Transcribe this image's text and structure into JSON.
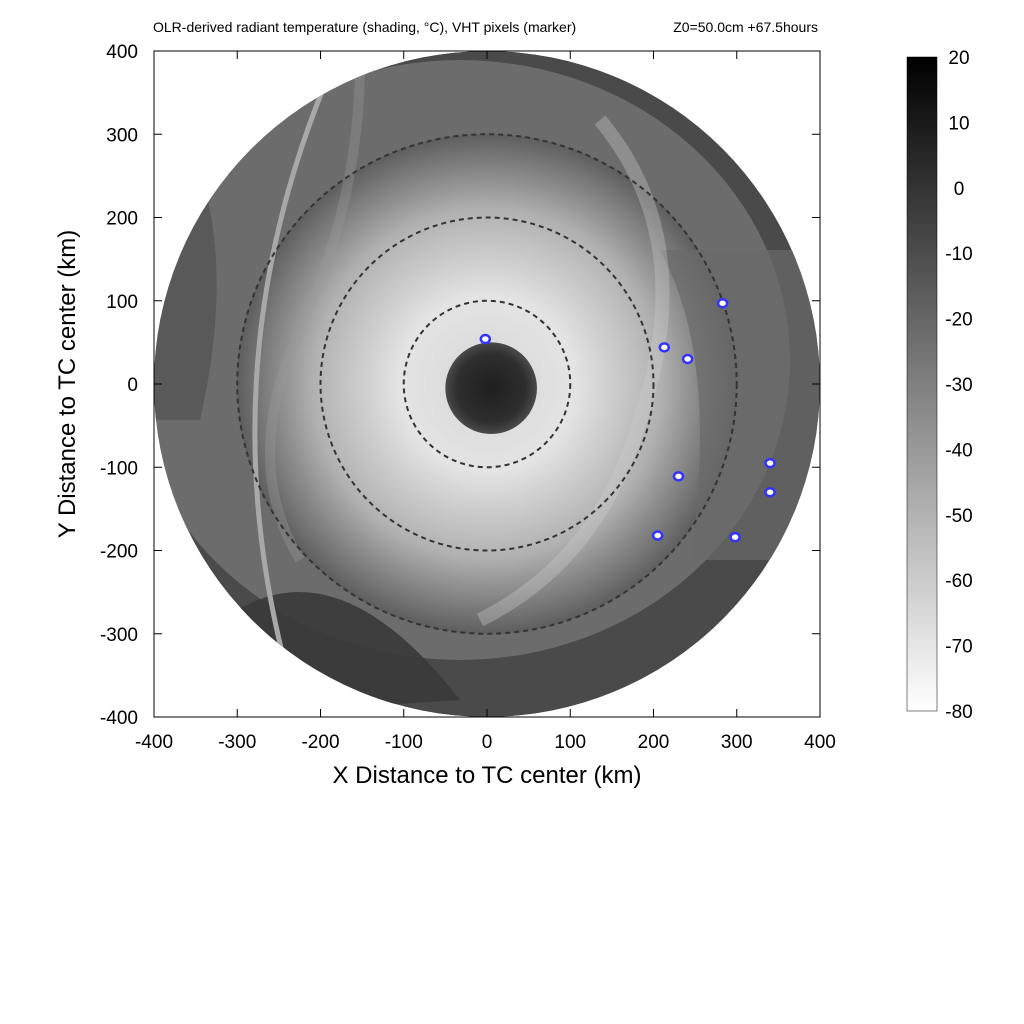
{
  "chart_data": {
    "type": "heatmap",
    "title": "OLR-derived radiant temperature (shading, °C), VHT pixels (marker)",
    "subtitle": "Z0=50.0cm  +67.5hours",
    "xlabel": "X Distance to TC center (km)",
    "ylabel": "Y Distance to TC center (km)",
    "xlim": [
      -400,
      400
    ],
    "ylim": [
      -400,
      400
    ],
    "x_ticks": [
      "-400",
      "-300",
      "-200",
      "-100",
      "0",
      "100",
      "200",
      "300",
      "400"
    ],
    "y_ticks": [
      "-400",
      "-300",
      "-200",
      "-100",
      "0",
      "100",
      "200",
      "300",
      "400"
    ],
    "colorbar": {
      "range": [
        -80,
        20
      ],
      "ticks": [
        "20",
        "10",
        "0",
        "-10",
        "-20",
        "-30",
        "-40",
        "-50",
        "-60",
        "-70",
        "-80"
      ],
      "low_color": "#ffffff",
      "high_color": "#000000"
    },
    "data_radius_km": 400,
    "range_rings_km": [
      100,
      200,
      300
    ],
    "range_ring_style": "dashed",
    "eye": {
      "x": 5,
      "y": -5,
      "radius_km": 55,
      "temperature_c": 0
    },
    "vht_markers": [
      {
        "x": -2,
        "y": 54
      },
      {
        "x": 213,
        "y": 44
      },
      {
        "x": 241,
        "y": 30
      },
      {
        "x": 283,
        "y": 97
      },
      {
        "x": 230,
        "y": -111
      },
      {
        "x": 340,
        "y": -95
      },
      {
        "x": 340,
        "y": -130
      },
      {
        "x": 205,
        "y": -182
      },
      {
        "x": 298,
        "y": -184
      }
    ],
    "marker_color": "#3333ff",
    "grid": false,
    "legend": "none"
  }
}
